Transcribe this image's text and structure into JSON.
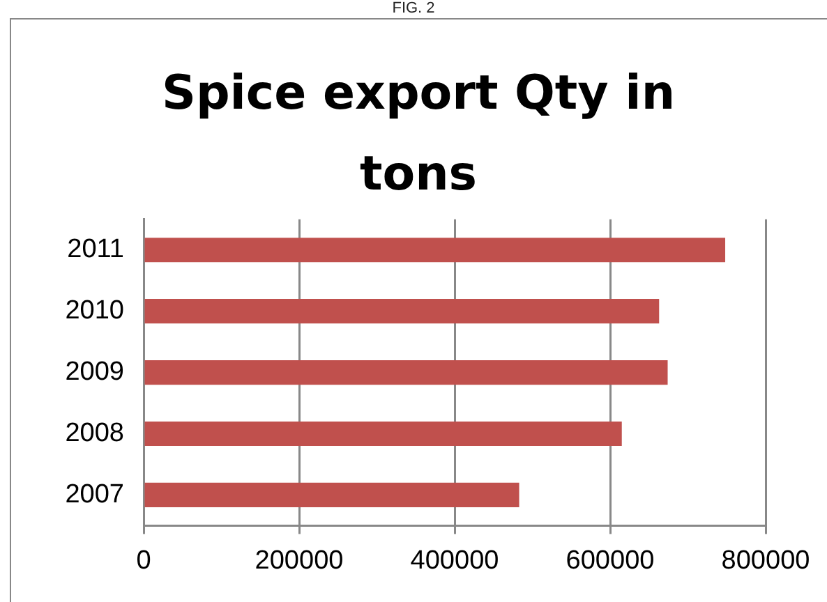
{
  "chart_data": {
    "type": "bar",
    "orientation": "horizontal",
    "title": "Spice export Qty in tons",
    "annotations": [
      "FIG. 2"
    ],
    "categories": [
      "2011",
      "2010",
      "2009",
      "2008",
      "2007"
    ],
    "values": [
      748000,
      663000,
      674000,
      615000,
      483000
    ],
    "color": "#c0504d",
    "xlim": [
      0,
      800000
    ],
    "xticks": [
      0,
      200000,
      400000,
      600000,
      800000
    ],
    "grid": "x",
    "legend": false
  }
}
